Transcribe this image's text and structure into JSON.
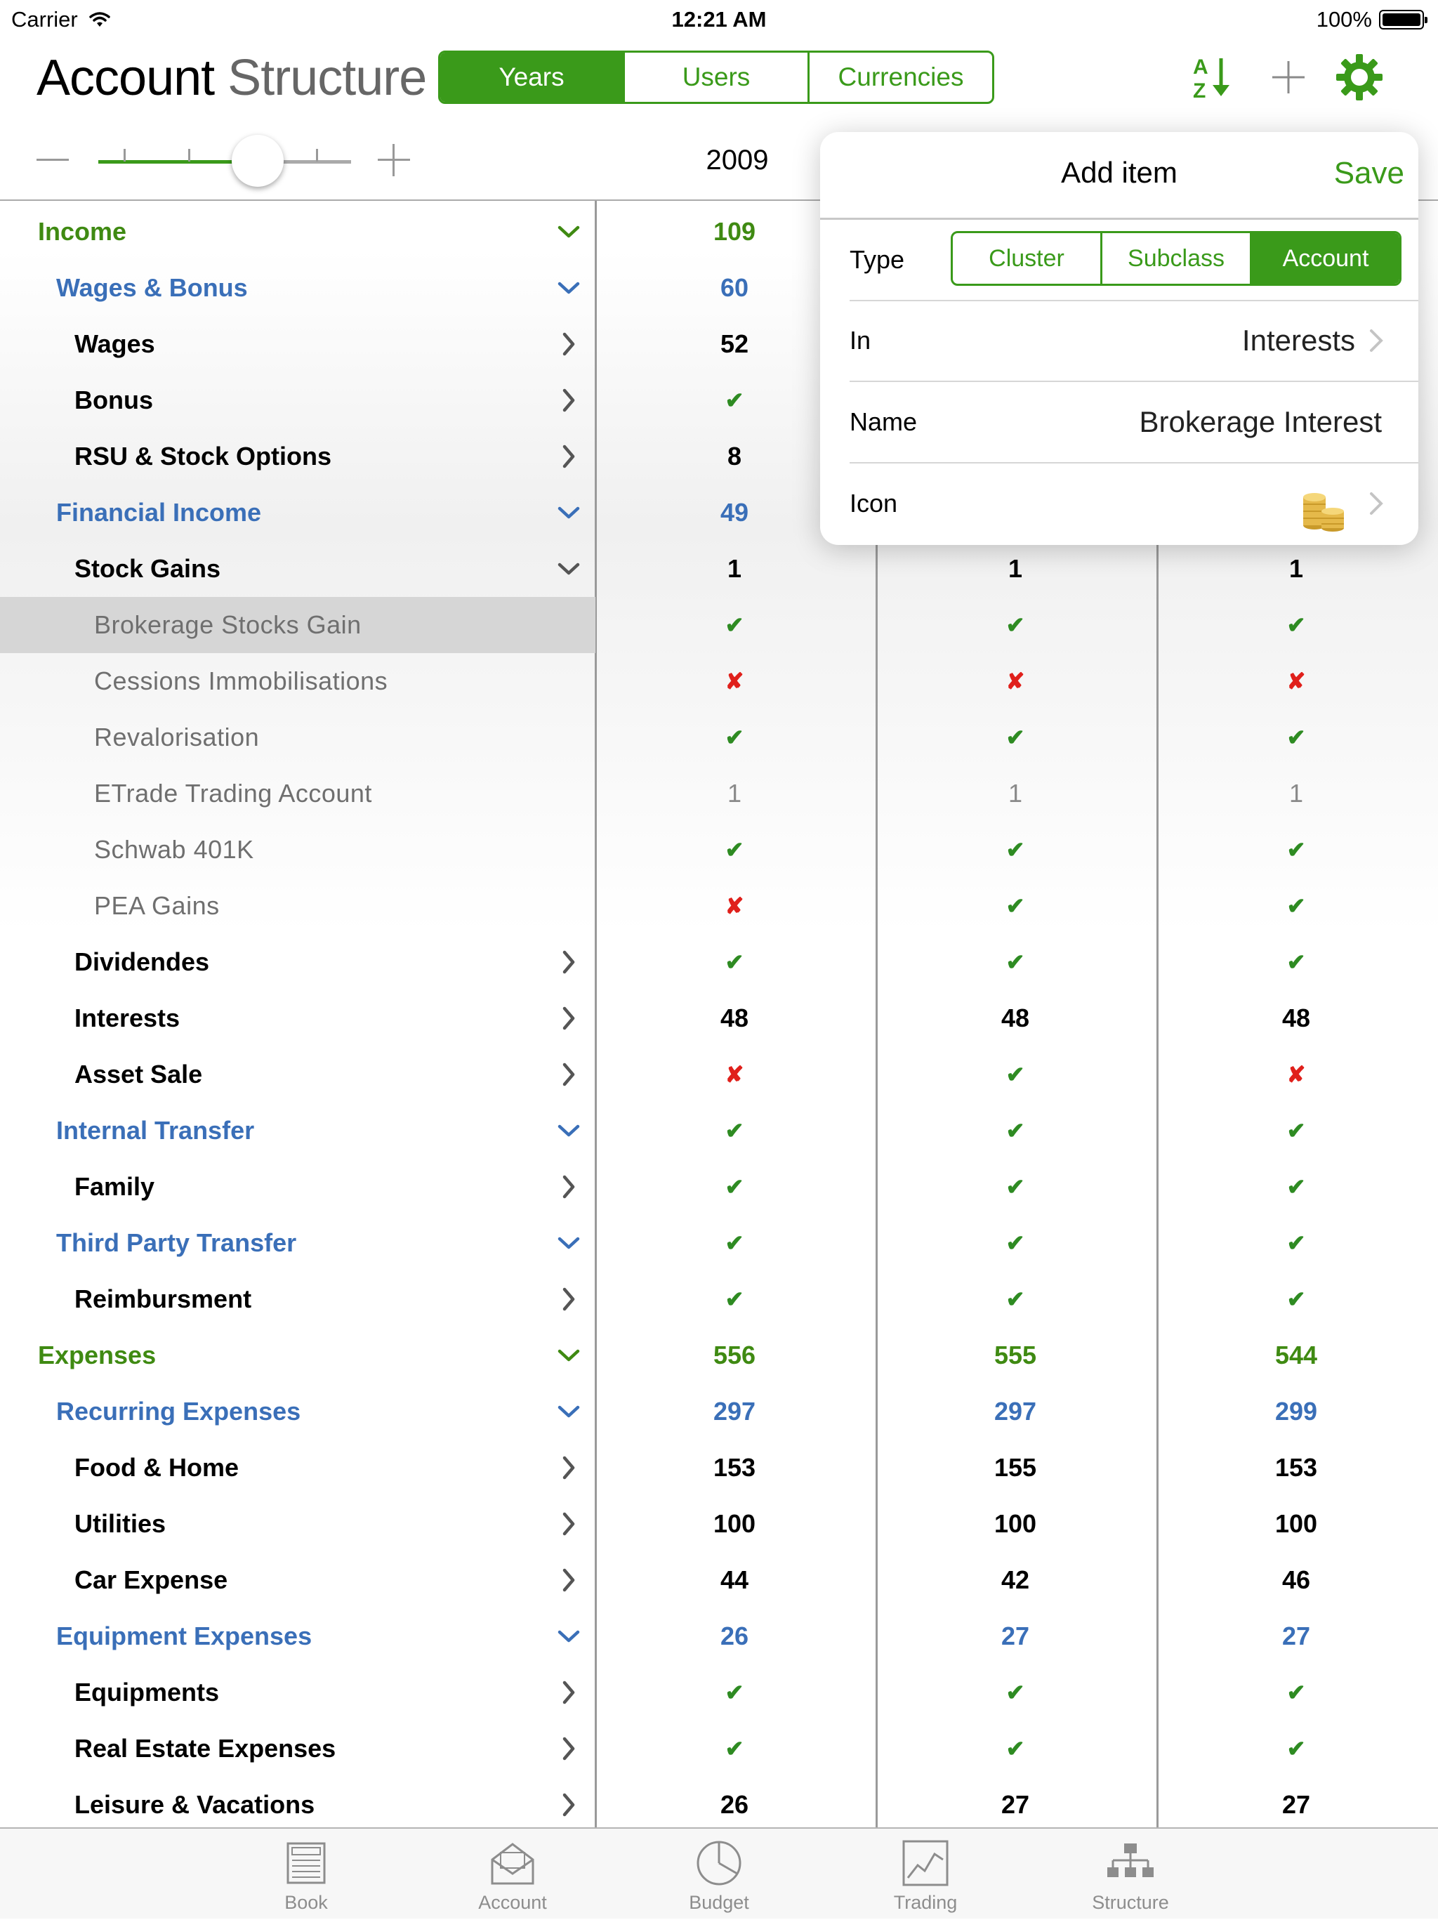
{
  "status": {
    "carrier": "Carrier",
    "time": "12:21 AM",
    "battery": "100%"
  },
  "header": {
    "title_bold": "Account",
    "title_light": "Structure",
    "segments": [
      "Years",
      "Users",
      "Currencies"
    ],
    "selected_segment": "Years"
  },
  "slider": {
    "year": "2009"
  },
  "colors": {
    "accent": "#3a9a1a",
    "blue": "#3a6fb8",
    "cross": "#e0201b"
  },
  "rows": [
    {
      "label": "Income",
      "level": 0,
      "chevron": "down",
      "values": [
        "109",
        "",
        ""
      ],
      "value_style": "green"
    },
    {
      "label": "Wages & Bonus",
      "level": 1,
      "chevron": "down",
      "values": [
        "60",
        "",
        ""
      ],
      "value_style": "blue"
    },
    {
      "label": "Wages",
      "level": 2,
      "chevron": "right",
      "values": [
        "52",
        "",
        ""
      ],
      "value_style": "black"
    },
    {
      "label": "Bonus",
      "level": 2,
      "chevron": "right",
      "values": [
        "✔",
        "",
        ""
      ],
      "value_style": "black"
    },
    {
      "label": "RSU & Stock Options",
      "level": 2,
      "chevron": "right",
      "values": [
        "8",
        "",
        ""
      ],
      "value_style": "black"
    },
    {
      "label": "Financial Income",
      "level": 1,
      "chevron": "down",
      "values": [
        "49",
        "",
        ""
      ],
      "value_style": "blue"
    },
    {
      "label": "Stock Gains",
      "level": 2,
      "chevron": "down",
      "values": [
        "1",
        "1",
        "1"
      ],
      "value_style": "black"
    },
    {
      "label": "Brokerage Stocks Gain",
      "level": 3,
      "chevron": "",
      "values": [
        "✔",
        "✔",
        "✔"
      ],
      "value_style": "gray",
      "selected": true
    },
    {
      "label": "Cessions Immobilisations",
      "level": 3,
      "chevron": "",
      "values": [
        "✘",
        "✘",
        "✘"
      ],
      "value_style": "gray"
    },
    {
      "label": "Revalorisation",
      "level": 3,
      "chevron": "",
      "values": [
        "✔",
        "✔",
        "✔"
      ],
      "value_style": "gray"
    },
    {
      "label": "ETrade Trading Account",
      "level": 3,
      "chevron": "",
      "values": [
        "1",
        "1",
        "1"
      ],
      "value_style": "gray"
    },
    {
      "label": "Schwab 401K",
      "level": 3,
      "chevron": "",
      "values": [
        "✔",
        "✔",
        "✔"
      ],
      "value_style": "gray"
    },
    {
      "label": "PEA Gains",
      "level": 3,
      "chevron": "",
      "values": [
        "✘",
        "✔",
        "✔"
      ],
      "value_style": "gray"
    },
    {
      "label": "Dividendes",
      "level": 2,
      "chevron": "right",
      "values": [
        "✔",
        "✔",
        "✔"
      ],
      "value_style": "black"
    },
    {
      "label": "Interests",
      "level": 2,
      "chevron": "right",
      "values": [
        "48",
        "48",
        "48"
      ],
      "value_style": "black"
    },
    {
      "label": "Asset Sale",
      "level": 2,
      "chevron": "right",
      "values": [
        "✘",
        "✔",
        "✘"
      ],
      "value_style": "black"
    },
    {
      "label": "Internal Transfer",
      "level": 1,
      "chevron": "down",
      "values": [
        "✔",
        "✔",
        "✔"
      ],
      "value_style": "blue"
    },
    {
      "label": "Family",
      "level": 2,
      "chevron": "right",
      "values": [
        "✔",
        "✔",
        "✔"
      ],
      "value_style": "black"
    },
    {
      "label": "Third Party Transfer",
      "level": 1,
      "chevron": "down",
      "values": [
        "✔",
        "✔",
        "✔"
      ],
      "value_style": "blue"
    },
    {
      "label": "Reimbursment",
      "level": 2,
      "chevron": "right",
      "values": [
        "✔",
        "✔",
        "✔"
      ],
      "value_style": "black"
    },
    {
      "label": "Expenses",
      "level": 0,
      "chevron": "down",
      "values": [
        "556",
        "555",
        "544"
      ],
      "value_style": "green"
    },
    {
      "label": "Recurring Expenses",
      "level": 1,
      "chevron": "down",
      "values": [
        "297",
        "297",
        "299"
      ],
      "value_style": "blue"
    },
    {
      "label": "Food & Home",
      "level": 2,
      "chevron": "right",
      "values": [
        "153",
        "155",
        "153"
      ],
      "value_style": "black"
    },
    {
      "label": "Utilities",
      "level": 2,
      "chevron": "right",
      "values": [
        "100",
        "100",
        "100"
      ],
      "value_style": "black"
    },
    {
      "label": "Car Expense",
      "level": 2,
      "chevron": "right",
      "values": [
        "44",
        "42",
        "46"
      ],
      "value_style": "black"
    },
    {
      "label": "Equipment Expenses",
      "level": 1,
      "chevron": "down",
      "values": [
        "26",
        "27",
        "27"
      ],
      "value_style": "blue"
    },
    {
      "label": "Equipments",
      "level": 2,
      "chevron": "right",
      "values": [
        "✔",
        "✔",
        "✔"
      ],
      "value_style": "black"
    },
    {
      "label": "Real Estate Expenses",
      "level": 2,
      "chevron": "right",
      "values": [
        "✔",
        "✔",
        "✔"
      ],
      "value_style": "black"
    },
    {
      "label": "Leisure & Vacations",
      "level": 2,
      "chevron": "right",
      "values": [
        "26",
        "27",
        "27"
      ],
      "value_style": "black"
    }
  ],
  "popover": {
    "title": "Add item",
    "save": "Save",
    "type_label": "Type",
    "type_options": [
      "Cluster",
      "Subclass",
      "Account"
    ],
    "type_selected": "Account",
    "in_label": "In",
    "in_value": "Interests",
    "name_label": "Name",
    "name_value": "Brokerage Interest",
    "icon_label": "Icon",
    "icon_value": "gold-coins-icon"
  },
  "tabs": [
    {
      "label": "Book",
      "icon": "book-icon"
    },
    {
      "label": "Account",
      "icon": "account-envelope-icon"
    },
    {
      "label": "Budget",
      "icon": "pie-chart-icon"
    },
    {
      "label": "Trading",
      "icon": "line-chart-icon"
    },
    {
      "label": "Structure",
      "icon": "hierarchy-icon"
    }
  ]
}
